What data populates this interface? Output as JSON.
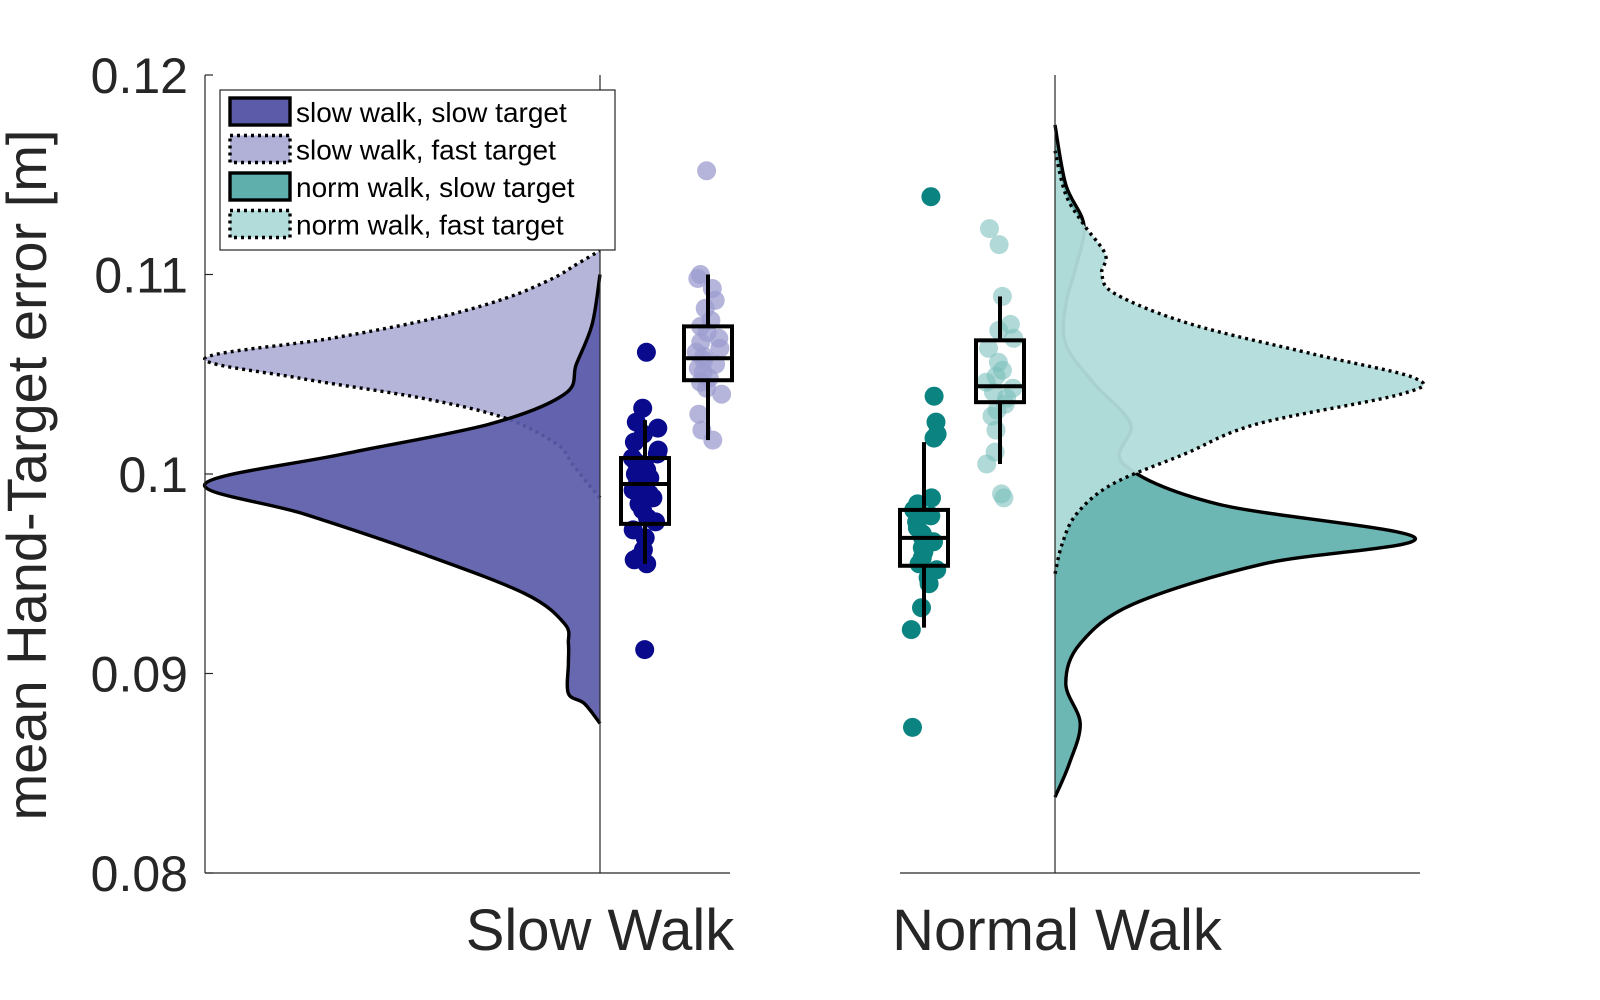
{
  "chart_data": {
    "type": "raincloud",
    "title": "",
    "xlabel": "",
    "ylabel": "mean Hand-Target error [m]",
    "ylim": [
      0.08,
      0.12
    ],
    "yticks": [
      0.08,
      0.09,
      0.1,
      0.11,
      0.12
    ],
    "ytick_labels": [
      "0.08",
      "0.09",
      "0.1",
      "0.11",
      "0.12"
    ],
    "groups": [
      "Slow Walk",
      "Normal Walk"
    ],
    "legend": {
      "position": "top-left",
      "entries": [
        {
          "label": "slow walk, slow target",
          "color": "#5B5BAA",
          "line": "solid"
        },
        {
          "label": "slow walk, fast target",
          "color": "#B1B1D8",
          "line": "dotted"
        },
        {
          "label": "norm walk, slow target",
          "color": "#5FB0AC",
          "line": "solid"
        },
        {
          "label": "norm walk, fast target",
          "color": "#B2DCDA",
          "line": "dotted"
        }
      ]
    },
    "series": [
      {
        "name": "slow walk, slow target",
        "group": "Slow Walk",
        "color": "#5B5BAA",
        "point_color": "#0A0A8C",
        "point_opacity": 1.0,
        "density_side": "left",
        "density": {
          "y": [
            0.0875,
            0.0885,
            0.089,
            0.0905,
            0.0915,
            0.0925,
            0.094,
            0.096,
            0.098,
            0.0995,
            0.101,
            0.1025,
            0.104,
            0.1055,
            0.1075,
            0.11
          ],
          "height": [
            0.0,
            0.04,
            0.08,
            0.08,
            0.08,
            0.09,
            0.19,
            0.45,
            0.75,
            1.0,
            0.65,
            0.28,
            0.09,
            0.06,
            0.02,
            0.0
          ]
        },
        "box": {
          "min": 0.0955,
          "q1": 0.0975,
          "median": 0.0995,
          "q3": 0.1008,
          "max": 0.1027
        },
        "points": [
          0.0912,
          0.0955,
          0.0957,
          0.0958,
          0.0962,
          0.0968,
          0.0972,
          0.0976,
          0.0978,
          0.0982,
          0.0985,
          0.0988,
          0.099,
          0.0992,
          0.0994,
          0.0996,
          0.0998,
          0.1,
          0.1002,
          0.1004,
          0.1006,
          0.1008,
          0.101,
          0.1012,
          0.1016,
          0.102,
          0.1023,
          0.1026,
          0.1033,
          0.1061
        ]
      },
      {
        "name": "slow walk, fast target",
        "group": "Slow Walk",
        "color": "#B1B1D8",
        "point_color": "#9C9CD0",
        "point_opacity": 0.75,
        "density_side": "left",
        "density": {
          "y": [
            0.0988,
            0.0995,
            0.1005,
            0.1015,
            0.1028,
            0.1038,
            0.1048,
            0.1058,
            0.1068,
            0.1078,
            0.1088,
            0.1098,
            0.1105,
            0.1112
          ],
          "height": [
            0.0,
            0.03,
            0.07,
            0.11,
            0.24,
            0.45,
            0.76,
            1.0,
            0.68,
            0.42,
            0.24,
            0.12,
            0.06,
            0.0
          ]
        },
        "box": {
          "min": 0.1017,
          "q1": 0.1047,
          "median": 0.1058,
          "q3": 0.1074,
          "max": 0.11
        },
        "points": [
          0.1017,
          0.1022,
          0.103,
          0.104,
          0.1043,
          0.1046,
          0.1048,
          0.1051,
          0.1053,
          0.1055,
          0.1057,
          0.1059,
          0.1061,
          0.1063,
          0.1066,
          0.1068,
          0.1071,
          0.1074,
          0.1077,
          0.1083,
          0.1087,
          0.1093,
          0.1098,
          0.11,
          0.1152
        ]
      },
      {
        "name": "norm walk, slow target",
        "group": "Normal Walk",
        "color": "#5FB0AC",
        "point_color": "#0B8380",
        "point_opacity": 1.0,
        "density_side": "right",
        "density": {
          "y": [
            0.0838,
            0.0855,
            0.0875,
            0.0895,
            0.0915,
            0.0935,
            0.0955,
            0.0968,
            0.0985,
            0.1005,
            0.1025,
            0.1045,
            0.1065,
            0.1085,
            0.1105,
            0.1125,
            0.1145,
            0.1175
          ],
          "height": [
            0.0,
            0.04,
            0.07,
            0.03,
            0.07,
            0.22,
            0.58,
            1.0,
            0.45,
            0.19,
            0.21,
            0.11,
            0.03,
            0.03,
            0.06,
            0.08,
            0.03,
            0.0
          ]
        },
        "box": {
          "min": 0.0923,
          "q1": 0.0954,
          "median": 0.0968,
          "q3": 0.0982,
          "max": 0.1016
        },
        "points": [
          0.0873,
          0.0922,
          0.0933,
          0.0945,
          0.0948,
          0.0952,
          0.0955,
          0.0958,
          0.0961,
          0.0963,
          0.0966,
          0.0968,
          0.097,
          0.0973,
          0.0976,
          0.0979,
          0.0982,
          0.0985,
          0.0988,
          0.1018,
          0.102,
          0.1026,
          0.1039,
          0.1139
        ]
      },
      {
        "name": "norm walk, fast target",
        "group": "Normal Walk",
        "color": "#B2DCDA",
        "point_color": "#7CC0BC",
        "point_opacity": 0.6,
        "density_side": "right",
        "density": {
          "y": [
            0.095,
            0.0965,
            0.098,
            0.0995,
            0.101,
            0.1025,
            0.104,
            0.1048,
            0.106,
            0.1075,
            0.109,
            0.11,
            0.111,
            0.1125,
            0.114,
            0.1162
          ],
          "height": [
            0.0,
            0.02,
            0.06,
            0.16,
            0.36,
            0.56,
            0.96,
            1.0,
            0.72,
            0.38,
            0.17,
            0.13,
            0.14,
            0.08,
            0.03,
            0.0
          ]
        },
        "box": {
          "min": 0.1005,
          "q1": 0.1036,
          "median": 0.1044,
          "q3": 0.1067,
          "max": 0.1089
        },
        "points": [
          0.0988,
          0.099,
          0.1005,
          0.1011,
          0.1022,
          0.1029,
          0.1032,
          0.1035,
          0.1038,
          0.1041,
          0.1043,
          0.1046,
          0.1049,
          0.1052,
          0.1056,
          0.1063,
          0.1068,
          0.1072,
          0.1075,
          0.1089,
          0.1115,
          0.1123
        ]
      }
    ]
  }
}
